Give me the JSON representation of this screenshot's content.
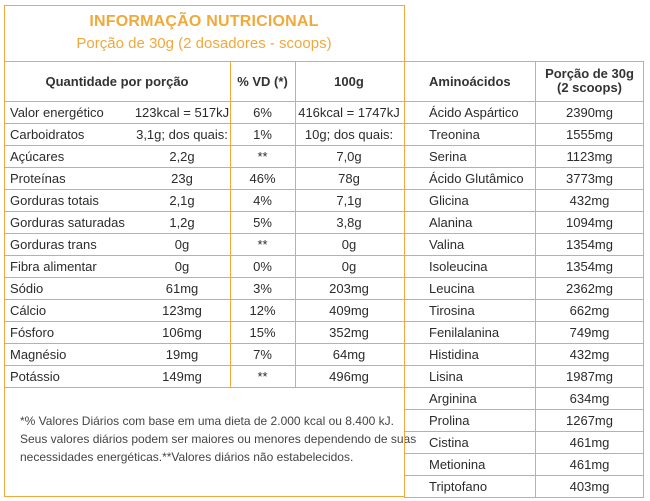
{
  "title": "INFORMAÇÃO NUTRICIONAL",
  "serving": "Porção de 30g (2 dosadores - scoops)",
  "nutrition": {
    "headers": {
      "quantity": "Quantidade por porção",
      "vd": "% VD (*)",
      "per100": "100g"
    },
    "rows": [
      {
        "name": "Valor energético",
        "portion": "123kcal = 517kJ",
        "vd": "6%",
        "per100": "416kcal = 1747kJ"
      },
      {
        "name": "Carboidratos",
        "portion": "3,1g; dos quais:",
        "vd": "1%",
        "per100": "10g; dos quais:"
      },
      {
        "name": "Açúcares",
        "portion": "2,2g",
        "vd": "**",
        "per100": "7,0g"
      },
      {
        "name": "Proteínas",
        "portion": "23g",
        "vd": "46%",
        "per100": "78g"
      },
      {
        "name": "Gorduras totais",
        "portion": "2,1g",
        "vd": "4%",
        "per100": "7,1g"
      },
      {
        "name": "Gorduras saturadas",
        "portion": "1,2g",
        "vd": "5%",
        "per100": "3,8g"
      },
      {
        "name": "Gorduras trans",
        "portion": "0g",
        "vd": "**",
        "per100": "0g"
      },
      {
        "name": "Fibra alimentar",
        "portion": "0g",
        "vd": "0%",
        "per100": "0g"
      },
      {
        "name": "Sódio",
        "portion": "61mg",
        "vd": "3%",
        "per100": "203mg"
      },
      {
        "name": "Cálcio",
        "portion": "123mg",
        "vd": "12%",
        "per100": "409mg"
      },
      {
        "name": "Fósforo",
        "portion": "106mg",
        "vd": "15%",
        "per100": "352mg"
      },
      {
        "name": "Magnésio",
        "portion": "19mg",
        "vd": "7%",
        "per100": "64mg"
      },
      {
        "name": "Potássio",
        "portion": "149mg",
        "vd": "**",
        "per100": "496mg"
      }
    ],
    "footnote_lines": [
      "*% Valores Diários com base em uma dieta de 2.000 kcal ou 8.400 kJ.",
      "Seus valores diários podem ser maiores ou menores dependendo de suas",
      "necessidades energéticas.**Valores diários não estabelecidos."
    ]
  },
  "amino": {
    "headers": {
      "name": "Aminoácidos",
      "portion_line1": "Porção de 30g",
      "portion_line2": "(2 scoops)"
    },
    "rows": [
      {
        "name": "Ácido Aspártico",
        "value": "2390mg"
      },
      {
        "name": "Treonina",
        "value": "1555mg"
      },
      {
        "name": "Serina",
        "value": "1123mg"
      },
      {
        "name": "Ácido Glutâmico",
        "value": "3773mg"
      },
      {
        "name": "Glicina",
        "value": "432mg"
      },
      {
        "name": "Alanina",
        "value": "1094mg"
      },
      {
        "name": "Valina",
        "value": "1354mg"
      },
      {
        "name": "Isoleucina",
        "value": "1354mg"
      },
      {
        "name": "Leucina",
        "value": "2362mg"
      },
      {
        "name": "Tirosina",
        "value": "662mg"
      },
      {
        "name": "Fenilalanina",
        "value": "749mg"
      },
      {
        "name": "Histidina",
        "value": "432mg"
      },
      {
        "name": "Lisina",
        "value": "1987mg"
      },
      {
        "name": "Arginina",
        "value": "634mg"
      },
      {
        "name": "Prolina",
        "value": "1267mg"
      },
      {
        "name": "Cistina",
        "value": "461mg"
      },
      {
        "name": "Metionina",
        "value": "461mg"
      },
      {
        "name": "Triptofano",
        "value": "403mg"
      }
    ]
  }
}
